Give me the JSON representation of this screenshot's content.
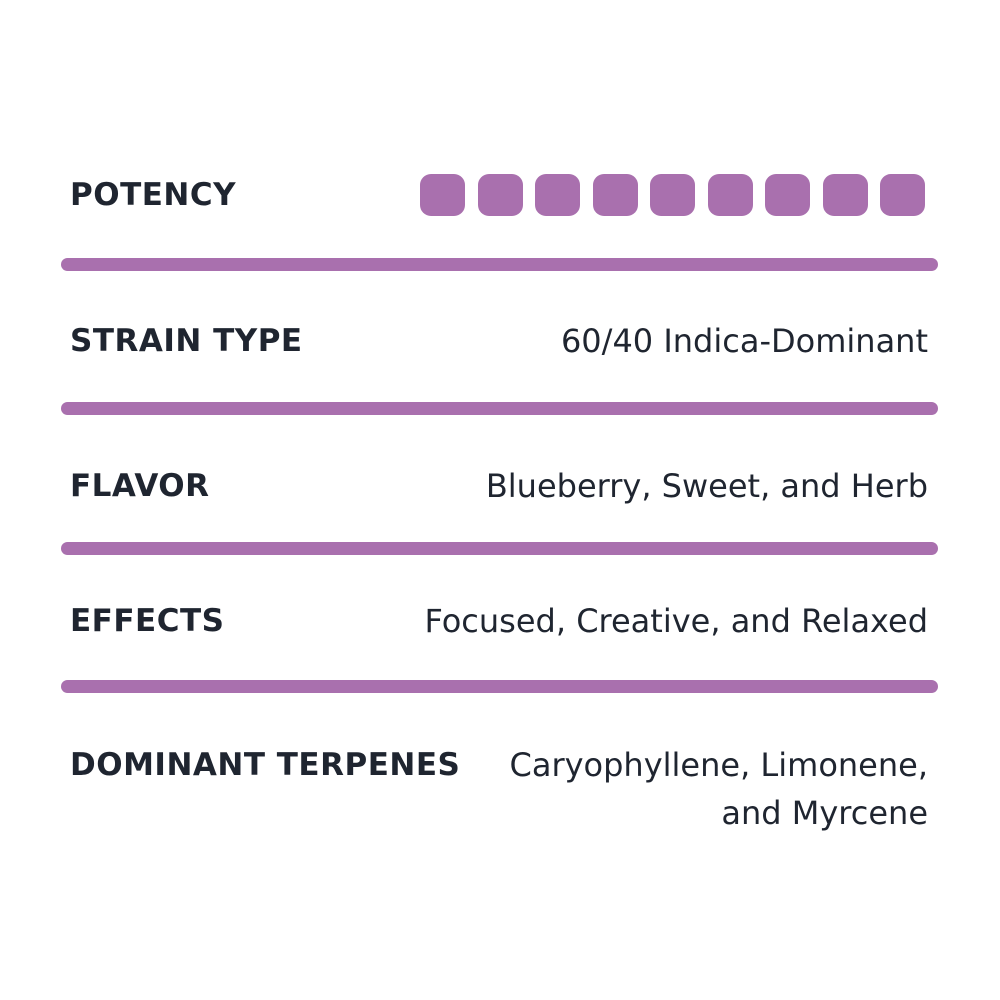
{
  "accent_color": "#a970ae",
  "rows": [
    {
      "label": "POTENCY",
      "potency": {
        "filled": 9,
        "total": 9
      }
    },
    {
      "label": "STRAIN TYPE",
      "value": "60/40 Indica-Dominant"
    },
    {
      "label": "FLAVOR",
      "value": "Blueberry, Sweet, and Herb"
    },
    {
      "label": "EFFECTS",
      "value": "Focused, Creative, and Relaxed"
    },
    {
      "label": "DOMINANT TERPENES",
      "value_lines": [
        "Caryophyllene, Limonene,",
        "and Myrcene"
      ]
    }
  ]
}
